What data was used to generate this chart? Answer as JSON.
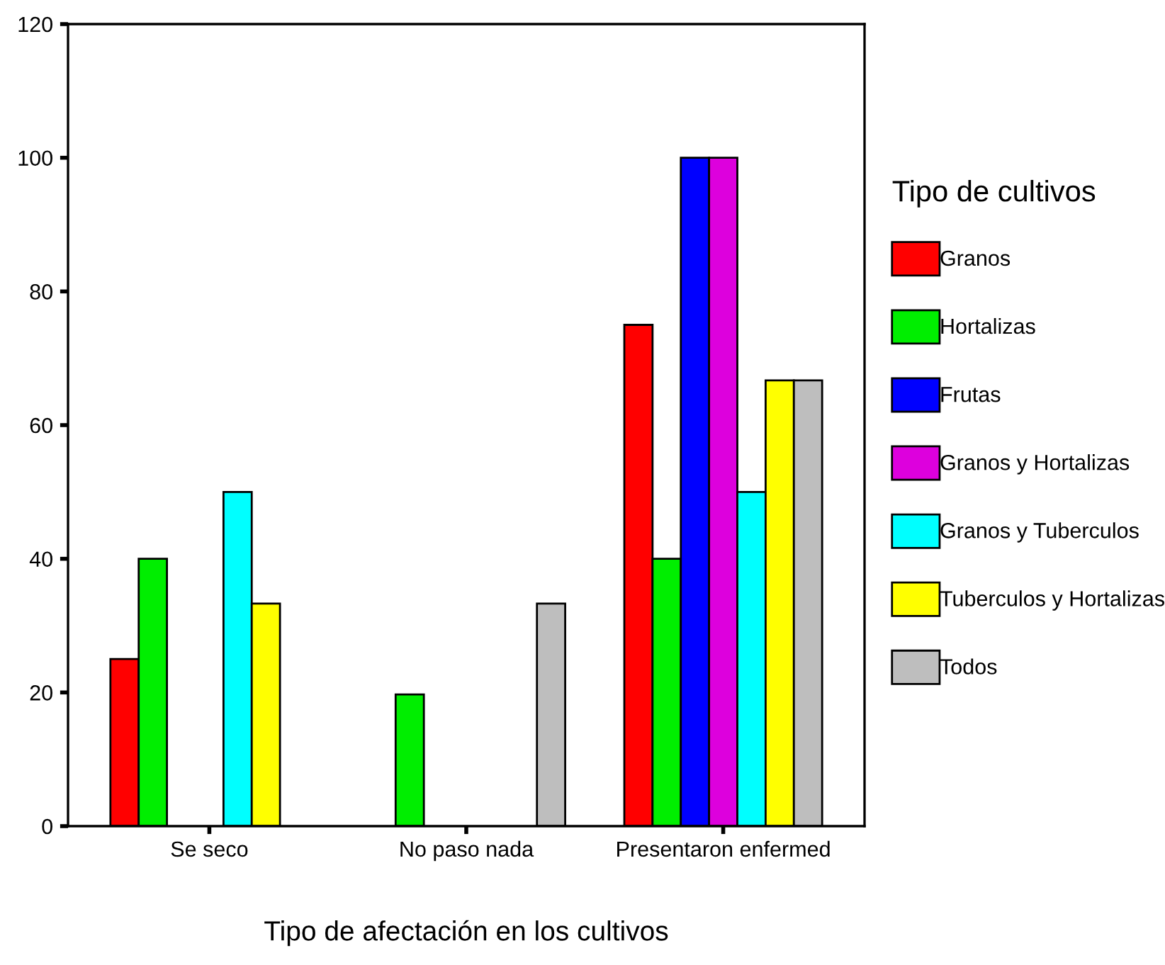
{
  "chart_data": {
    "type": "bar",
    "xlabel": "Tipo de afectación en los cultivos",
    "legend_title": "Tipo de cultivos",
    "categories": [
      "Se seco",
      "No paso nada",
      "Presentaron enfermed"
    ],
    "series": [
      {
        "name": "Granos",
        "color": "#ff0000",
        "values": [
          25,
          null,
          75
        ]
      },
      {
        "name": "Hortalizas",
        "color": "#00ee00",
        "values": [
          40,
          19.7,
          40
        ]
      },
      {
        "name": "Frutas",
        "color": "#0000ff",
        "values": [
          null,
          null,
          100
        ]
      },
      {
        "name": "Granos y Hortalizas",
        "color": "#dd00dd",
        "values": [
          null,
          null,
          100
        ]
      },
      {
        "name": "Granos y Tuberculos",
        "color": "#00ffff",
        "values": [
          50,
          null,
          50
        ]
      },
      {
        "name": "Tuberculos y Hortalizas",
        "color": "#ffff00",
        "values": [
          33.3,
          null,
          66.7
        ]
      },
      {
        "name": "Todos",
        "color": "#bebebe",
        "values": [
          null,
          33.3,
          66.7
        ]
      }
    ],
    "ylim": [
      0,
      120
    ],
    "yticks": [
      0,
      20,
      40,
      60,
      80,
      100,
      120
    ],
    "legend": "right",
    "grid": false
  }
}
